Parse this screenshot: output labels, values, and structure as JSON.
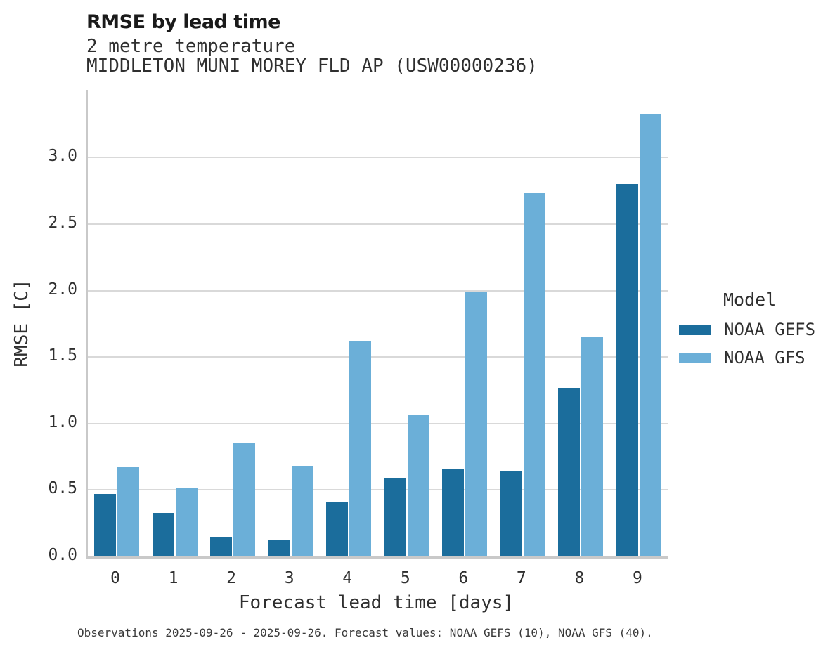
{
  "chart_data": {
    "type": "bar",
    "title": "RMSE by lead time",
    "subtitle": "2 metre temperature",
    "station_line": "MIDDLETON MUNI MOREY FLD AP (USW00000236)",
    "categories": [
      "0",
      "1",
      "2",
      "3",
      "4",
      "5",
      "6",
      "7",
      "8",
      "9"
    ],
    "series": [
      {
        "name": "NOAA GEFS",
        "color": "#1b6d9c",
        "values": [
          0.47,
          0.33,
          0.15,
          0.12,
          0.41,
          0.59,
          0.66,
          0.64,
          1.27,
          2.8
        ]
      },
      {
        "name": "NOAA GFS",
        "color": "#6bafd8",
        "values": [
          0.67,
          0.52,
          0.85,
          0.68,
          1.62,
          1.07,
          1.99,
          2.74,
          1.65,
          3.33
        ]
      }
    ],
    "xlabel": "Forecast lead time [days]",
    "ylabel": "RMSE [C]",
    "ylim": [
      0,
      3.51
    ],
    "yticks": [
      0.0,
      0.5,
      1.0,
      1.5,
      2.0,
      2.5,
      3.0
    ],
    "grid": "horizontal-only",
    "background": "#ffffff",
    "gridline_color": "#d9d9d9",
    "legend": {
      "title": "Model",
      "position": "right",
      "items": [
        {
          "label": "NOAA GEFS",
          "color": "#1b6d9c"
        },
        {
          "label": "NOAA GFS",
          "color": "#6bafd8"
        }
      ]
    },
    "caption": "Observations 2025-09-26 - 2025-09-26. Forecast values: NOAA GEFS (10), NOAA GFS (40)."
  }
}
